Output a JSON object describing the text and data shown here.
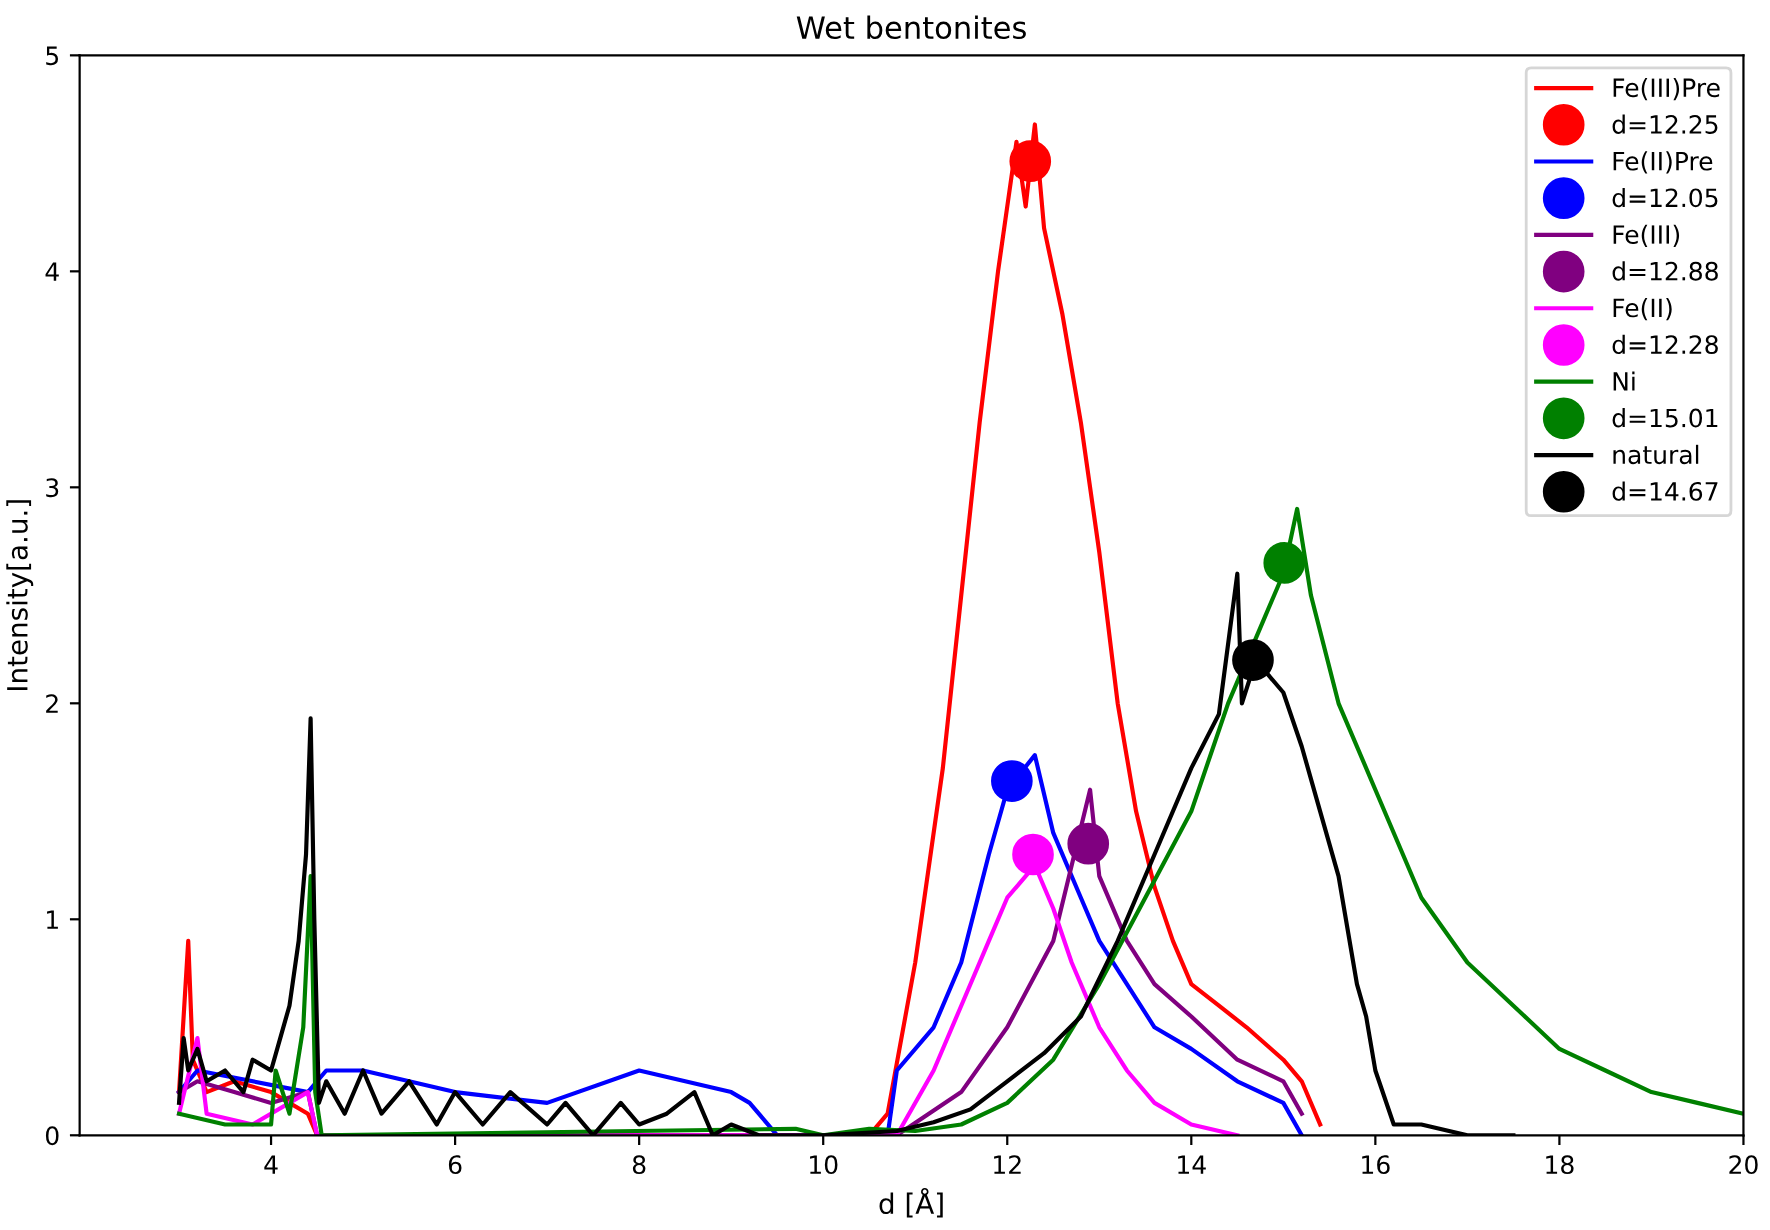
{
  "chart_data": {
    "type": "line",
    "title": "Wet bentonites",
    "xlabel": "d [Å]",
    "ylabel": "Intensity[a.u.]",
    "xlim": [
      1.92,
      20
    ],
    "ylim": [
      0,
      5
    ],
    "xticks": [
      4,
      6,
      8,
      10,
      12,
      14,
      16,
      18,
      20
    ],
    "yticks": [
      0,
      1,
      2,
      3,
      4,
      5
    ],
    "grid": false,
    "legend": "top right",
    "line_style": "solid",
    "series": [
      {
        "name": "Fe(III)Pre",
        "color": "#ff0000",
        "x": [
          3.0,
          3.1,
          3.15,
          3.3,
          3.6,
          4.0,
          4.4,
          4.5,
          10.5,
          10.7,
          11.0,
          11.3,
          11.5,
          11.7,
          11.9,
          12.0,
          12.1,
          12.2,
          12.3,
          12.4,
          12.6,
          12.8,
          13.0,
          13.2,
          13.4,
          13.6,
          13.8,
          14.0,
          14.3,
          14.6,
          15.0,
          15.2,
          15.4
        ],
        "values": [
          0.2,
          0.9,
          0.35,
          0.2,
          0.25,
          0.2,
          0.1,
          0.0,
          0.0,
          0.1,
          0.8,
          1.7,
          2.5,
          3.3,
          4.0,
          4.3,
          4.6,
          4.3,
          4.68,
          4.2,
          3.8,
          3.3,
          2.7,
          2.0,
          1.5,
          1.15,
          0.9,
          0.7,
          0.6,
          0.5,
          0.35,
          0.25,
          0.05
        ]
      },
      {
        "type": "scatter",
        "name": "d=12.25",
        "color": "#ff0000",
        "marker": "circle",
        "x": [
          12.25
        ],
        "values": [
          4.51
        ]
      },
      {
        "name": "Fe(II)Pre",
        "color": "#0000ff",
        "x": [
          3.0,
          3.2,
          4.4,
          4.6,
          5.0,
          6.0,
          7.0,
          8.0,
          9.0,
          9.2,
          9.5,
          10.7,
          10.8,
          11.2,
          11.5,
          11.8,
          12.0,
          12.3,
          12.5,
          12.8,
          13.0,
          13.3,
          13.6,
          14.0,
          14.5,
          15.0,
          15.2
        ],
        "values": [
          0.2,
          0.3,
          0.2,
          0.3,
          0.3,
          0.2,
          0.15,
          0.3,
          0.2,
          0.15,
          0.0,
          0.0,
          0.3,
          0.5,
          0.8,
          1.3,
          1.6,
          1.76,
          1.4,
          1.1,
          0.9,
          0.7,
          0.5,
          0.4,
          0.25,
          0.15,
          0.0
        ]
      },
      {
        "type": "scatter",
        "name": "d=12.05",
        "color": "#0000ff",
        "marker": "circle",
        "x": [
          12.05
        ],
        "values": [
          1.64
        ]
      },
      {
        "name": "Fe(III)",
        "color": "#800080",
        "x": [
          3.0,
          3.2,
          3.6,
          4.0,
          4.4,
          4.5,
          10.8,
          11.5,
          12.0,
          12.5,
          12.9,
          13.0,
          13.3,
          13.6,
          14.0,
          14.5,
          15.0,
          15.2
        ],
        "values": [
          0.2,
          0.25,
          0.2,
          0.15,
          0.2,
          0.0,
          0.0,
          0.2,
          0.5,
          0.9,
          1.6,
          1.2,
          0.9,
          0.7,
          0.55,
          0.35,
          0.25,
          0.1
        ]
      },
      {
        "type": "scatter",
        "name": "d=12.88",
        "color": "#800080",
        "marker": "circle",
        "x": [
          12.88
        ],
        "values": [
          1.35
        ]
      },
      {
        "name": "Fe(II)",
        "color": "#ff00ff",
        "x": [
          3.0,
          3.2,
          3.3,
          3.8,
          4.4,
          4.5,
          10.8,
          11.2,
          11.5,
          11.8,
          12.0,
          12.3,
          12.5,
          12.7,
          13.0,
          13.3,
          13.6,
          14.0,
          14.5
        ],
        "values": [
          0.1,
          0.45,
          0.1,
          0.05,
          0.2,
          0.0,
          0.0,
          0.3,
          0.6,
          0.9,
          1.1,
          1.25,
          1.05,
          0.8,
          0.5,
          0.3,
          0.15,
          0.05,
          0.0
        ]
      },
      {
        "type": "scatter",
        "name": "d=12.28",
        "color": "#ff00ff",
        "marker": "circle",
        "x": [
          12.28
        ],
        "values": [
          1.3
        ]
      },
      {
        "name": "Ni",
        "color": "#008000",
        "x": [
          3.0,
          3.5,
          4.0,
          4.05,
          4.2,
          4.35,
          4.43,
          4.48,
          4.55,
          9.7,
          10.0,
          10.5,
          11.0,
          11.5,
          12.0,
          12.5,
          13.0,
          13.5,
          14.0,
          14.4,
          14.8,
          15.0,
          15.15,
          15.3,
          15.6,
          16.0,
          16.5,
          17.0,
          17.5,
          18.0,
          18.5,
          19.0,
          19.5,
          20.0
        ],
        "values": [
          0.1,
          0.05,
          0.05,
          0.3,
          0.1,
          0.5,
          1.2,
          0.2,
          0.0,
          0.03,
          0.0,
          0.03,
          0.02,
          0.05,
          0.15,
          0.35,
          0.7,
          1.1,
          1.5,
          2.0,
          2.4,
          2.6,
          2.9,
          2.5,
          2.0,
          1.6,
          1.1,
          0.8,
          0.6,
          0.4,
          0.3,
          0.2,
          0.15,
          0.1
        ]
      },
      {
        "type": "scatter",
        "name": "d=15.01",
        "color": "#008000",
        "marker": "circle",
        "x": [
          15.01
        ],
        "values": [
          2.65
        ]
      },
      {
        "name": "natural",
        "color": "#000000",
        "x": [
          3.0,
          3.05,
          3.1,
          3.2,
          3.3,
          3.5,
          3.7,
          3.8,
          4.0,
          4.1,
          4.2,
          4.3,
          4.38,
          4.43,
          4.47,
          4.52,
          4.6,
          4.8,
          5.0,
          5.2,
          5.5,
          5.8,
          6.0,
          6.3,
          6.6,
          7.0,
          7.2,
          7.5,
          7.8,
          8.0,
          8.3,
          8.6,
          8.8,
          9.0,
          9.3,
          10.0,
          10.8,
          11.2,
          11.6,
          12.0,
          12.4,
          12.8,
          13.2,
          13.6,
          14.0,
          14.3,
          14.5,
          14.55,
          14.7,
          15.0,
          15.2,
          15.4,
          15.6,
          15.8,
          15.9,
          16.0,
          16.2,
          16.5,
          17.0,
          17.5
        ],
        "values": [
          0.15,
          0.45,
          0.3,
          0.4,
          0.25,
          0.3,
          0.2,
          0.35,
          0.3,
          0.45,
          0.6,
          0.9,
          1.3,
          1.93,
          1.0,
          0.15,
          0.25,
          0.1,
          0.3,
          0.1,
          0.25,
          0.05,
          0.2,
          0.05,
          0.2,
          0.05,
          0.15,
          0.0,
          0.15,
          0.05,
          0.1,
          0.2,
          0.0,
          0.05,
          0.0,
          0.0,
          0.02,
          0.06,
          0.12,
          0.25,
          0.38,
          0.55,
          0.9,
          1.3,
          1.7,
          1.95,
          2.6,
          2.0,
          2.2,
          2.05,
          1.8,
          1.5,
          1.2,
          0.7,
          0.55,
          0.3,
          0.05,
          0.05,
          0.0,
          0.0
        ]
      },
      {
        "type": "scatter",
        "name": "d=14.67",
        "color": "#000000",
        "marker": "circle",
        "x": [
          14.67
        ],
        "values": [
          2.2
        ]
      }
    ]
  }
}
